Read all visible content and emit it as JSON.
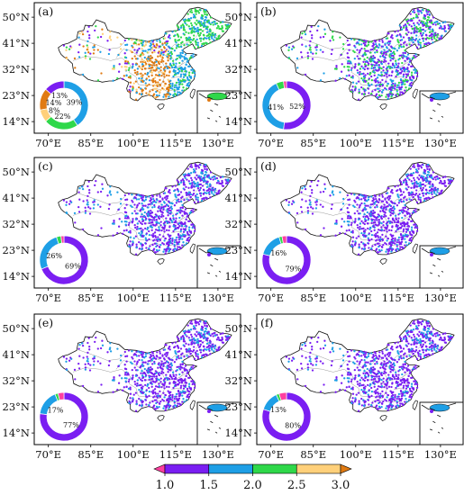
{
  "axes": {
    "lat_ticks": [
      "50°N",
      "41°N",
      "32°N",
      "23°N",
      "14°N"
    ],
    "lon_ticks": [
      "70°E",
      "85°E",
      "100°E",
      "115°E",
      "130°E"
    ],
    "lat_values": [
      50,
      41,
      32,
      23,
      14
    ],
    "lon_values": [
      70,
      85,
      100,
      115,
      130
    ],
    "lat_range": [
      10,
      55
    ],
    "lon_range": [
      65,
      138
    ]
  },
  "panels": [
    {
      "label": "(a)",
      "donut": [
        {
          "text": "39%",
          "value": 39,
          "color": "#1e9fe6"
        },
        {
          "text": "22%",
          "value": 22,
          "color": "#2fd84a"
        },
        {
          "text": "8%",
          "value": 8,
          "color": "#ffd07a"
        },
        {
          "text": "14%",
          "value": 14,
          "color": "#e07a12"
        },
        {
          "text": "13%",
          "value": 13,
          "color": "#7a1ef2"
        }
      ],
      "dot_mix": [
        "#7a1ef2",
        "#1e9fe6",
        "#2fd84a",
        "#e07a12",
        "#ffd07a"
      ]
    },
    {
      "label": "(b)",
      "donut": [
        {
          "text": "52%",
          "value": 52,
          "color": "#7a1ef2"
        },
        {
          "text": "41%",
          "value": 41,
          "color": "#1e9fe6"
        },
        {
          "text": "",
          "value": 5,
          "color": "#2fd84a"
        },
        {
          "text": "",
          "value": 2,
          "color": "#ff3fa0"
        }
      ],
      "dot_mix": [
        "#7a1ef2",
        "#7a1ef2",
        "#1e9fe6",
        "#2fd84a"
      ]
    },
    {
      "label": "(c)",
      "donut": [
        {
          "text": "69%",
          "value": 69,
          "color": "#7a1ef2"
        },
        {
          "text": "26%",
          "value": 26,
          "color": "#1e9fe6"
        },
        {
          "text": "",
          "value": 3,
          "color": "#2fd84a"
        },
        {
          "text": "",
          "value": 2,
          "color": "#ff3fa0"
        }
      ],
      "dot_mix": [
        "#7a1ef2",
        "#7a1ef2",
        "#1e9fe6"
      ]
    },
    {
      "label": "(d)",
      "donut": [
        {
          "text": "79%",
          "value": 79,
          "color": "#7a1ef2"
        },
        {
          "text": "16%",
          "value": 16,
          "color": "#1e9fe6"
        },
        {
          "text": "",
          "value": 2,
          "color": "#2fd84a"
        },
        {
          "text": "",
          "value": 3,
          "color": "#ff3fa0"
        }
      ],
      "dot_mix": [
        "#7a1ef2",
        "#7a1ef2",
        "#7a1ef2",
        "#1e9fe6"
      ]
    },
    {
      "label": "(e)",
      "donut": [
        {
          "text": "77%",
          "value": 77,
          "color": "#7a1ef2"
        },
        {
          "text": "17%",
          "value": 17,
          "color": "#1e9fe6"
        },
        {
          "text": "",
          "value": 2,
          "color": "#2fd84a"
        },
        {
          "text": "",
          "value": 4,
          "color": "#ff3fa0"
        }
      ],
      "dot_mix": [
        "#7a1ef2",
        "#7a1ef2",
        "#7a1ef2",
        "#1e9fe6"
      ]
    },
    {
      "label": "(f)",
      "donut": [
        {
          "text": "80%",
          "value": 80,
          "color": "#7a1ef2"
        },
        {
          "text": "13%",
          "value": 13,
          "color": "#1e9fe6"
        },
        {
          "text": "",
          "value": 2,
          "color": "#2fd84a"
        },
        {
          "text": "",
          "value": 5,
          "color": "#ff3fa0"
        }
      ],
      "dot_mix": [
        "#7a1ef2",
        "#7a1ef2",
        "#7a1ef2",
        "#1e9fe6"
      ]
    }
  ],
  "colorbar": {
    "ticks": [
      "1.0",
      "1.5",
      "2.0",
      "2.5",
      "3.0"
    ],
    "bins": [
      {
        "from": 1.0,
        "to": 1.5,
        "color": "#7a1ef2"
      },
      {
        "from": 1.5,
        "to": 2.0,
        "color": "#1e9fe6"
      },
      {
        "from": 2.0,
        "to": 2.5,
        "color": "#2fd84a"
      },
      {
        "from": 2.5,
        "to": 3.0,
        "color": "#ffd07a"
      }
    ],
    "under_color": "#ff3fa0",
    "over_color": "#e07a12"
  }
}
